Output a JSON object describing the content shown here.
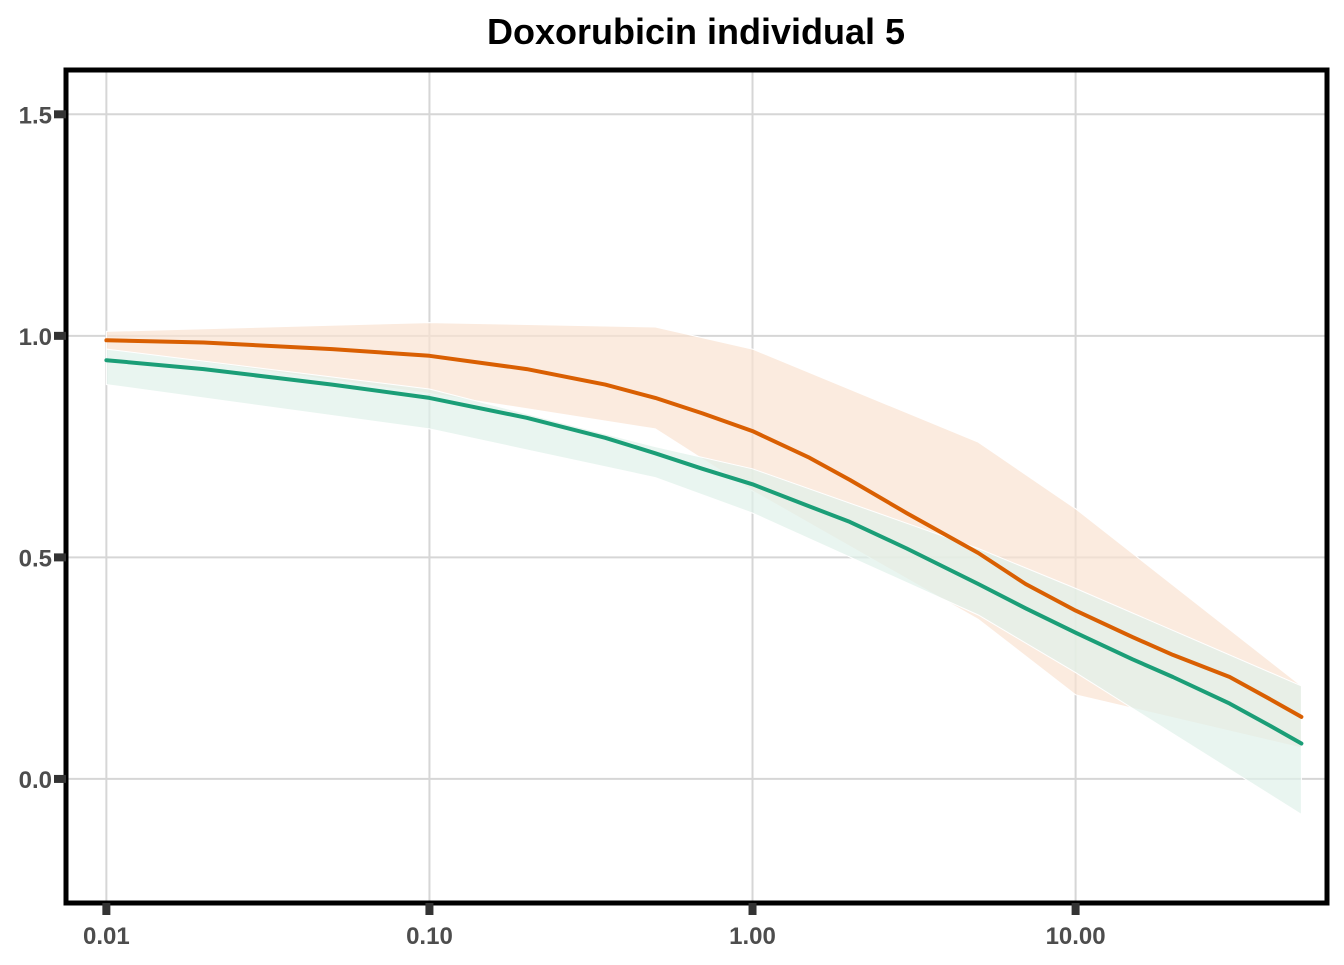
{
  "chart_data": {
    "type": "line",
    "title": "Doxorubicin individual 5",
    "xlabel": "",
    "ylabel": "",
    "x_scale": "log10",
    "xlim": [
      0.0075,
      60
    ],
    "ylim": [
      -0.28,
      1.6
    ],
    "x_ticks": [
      {
        "value": 0.01,
        "label": "0.01"
      },
      {
        "value": 0.1,
        "label": "0.10"
      },
      {
        "value": 1,
        "label": "1.00"
      },
      {
        "value": 10,
        "label": "10.00"
      }
    ],
    "y_ticks": [
      {
        "value": 0,
        "label": "0.0"
      },
      {
        "value": 0.5,
        "label": "0.5"
      },
      {
        "value": 1,
        "label": "1.0"
      },
      {
        "value": 1.5,
        "label": "1.5"
      }
    ],
    "grid": true,
    "legend": "none",
    "series": [
      {
        "color": "#d95f02",
        "band_color": "#f9e2d2",
        "line": {
          "x": [
            0.01,
            0.02,
            0.05,
            0.1,
            0.2,
            0.35,
            0.5,
            0.7,
            1,
            1.5,
            2,
            3,
            5,
            7,
            10,
            15,
            20,
            30,
            40,
            50
          ],
          "y": [
            0.99,
            0.985,
            0.97,
            0.955,
            0.925,
            0.89,
            0.86,
            0.825,
            0.785,
            0.725,
            0.675,
            0.6,
            0.51,
            0.44,
            0.38,
            0.32,
            0.28,
            0.23,
            0.18,
            0.14
          ]
        },
        "band": {
          "x": [
            0.01,
            0.1,
            0.5,
            1,
            5,
            10,
            50
          ],
          "lower": [
            0.97,
            0.87,
            0.79,
            0.65,
            0.36,
            0.19,
            0.07
          ],
          "upper": [
            1.01,
            1.03,
            1.02,
            0.97,
            0.76,
            0.61,
            0.21
          ]
        }
      },
      {
        "color": "#1b9e77",
        "band_color": "#dff1ea",
        "line": {
          "x": [
            0.01,
            0.02,
            0.05,
            0.1,
            0.2,
            0.35,
            0.5,
            0.7,
            1,
            1.5,
            2,
            3,
            5,
            7,
            10,
            15,
            20,
            30,
            40,
            50
          ],
          "y": [
            0.945,
            0.925,
            0.89,
            0.86,
            0.815,
            0.77,
            0.735,
            0.7,
            0.665,
            0.615,
            0.58,
            0.52,
            0.44,
            0.385,
            0.33,
            0.27,
            0.23,
            0.17,
            0.12,
            0.08
          ]
        },
        "band": {
          "x": [
            0.01,
            0.1,
            0.5,
            1,
            5,
            10,
            50
          ],
          "lower": [
            0.89,
            0.79,
            0.68,
            0.6,
            0.37,
            0.24,
            -0.08
          ],
          "upper": [
            0.97,
            0.88,
            0.75,
            0.7,
            0.52,
            0.43,
            0.21
          ]
        }
      }
    ]
  }
}
